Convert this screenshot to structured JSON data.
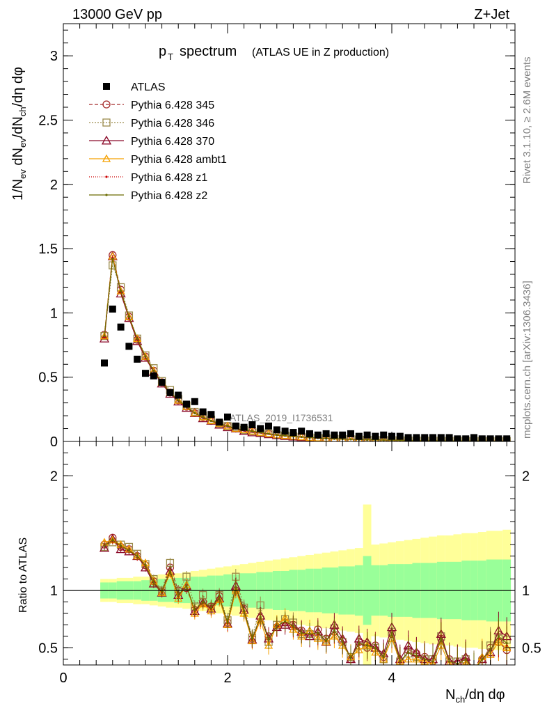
{
  "header": {
    "left": "13000 GeV pp",
    "right": "Z+Jet"
  },
  "side": {
    "rivet": "Rivet 3.1.10, ≥ 2.6M events",
    "mcplots": "mcplots.cern.ch [arXiv:1306.3436]"
  },
  "chart_data": [
    {
      "type": "scatter",
      "panel": "main",
      "title_main": "p",
      "title_sub": "T",
      "title_rest": "spectrum",
      "title_small": "(ATLAS UE in Z production)",
      "ylabel": "1/N_ev dN_ev/dN_ch/dη dφ",
      "watermark": "ATLAS_2019_I1736531",
      "xlim": [
        0,
        5.5
      ],
      "ylim": [
        0,
        3.25
      ],
      "yticks": [
        "0",
        "0.5",
        "1",
        "1.5",
        "2",
        "2.5",
        "3"
      ],
      "x": [
        0.5,
        0.6,
        0.7,
        0.8,
        0.9,
        1.0,
        1.1,
        1.2,
        1.3,
        1.4,
        1.5,
        1.6,
        1.7,
        1.8,
        1.9,
        2.0,
        2.1,
        2.2,
        2.3,
        2.4,
        2.5,
        2.6,
        2.7,
        2.8,
        2.9,
        3.0,
        3.1,
        3.2,
        3.3,
        3.4,
        3.5,
        3.6,
        3.7,
        3.8,
        3.9,
        4.0,
        4.1,
        4.2,
        4.3,
        4.4,
        4.5,
        4.6,
        4.7,
        4.8,
        4.9,
        5.0,
        5.1,
        5.2,
        5.3,
        5.4
      ],
      "series": [
        {
          "name": "ATLAS",
          "color": "#000000",
          "marker": "square",
          "values": [
            0.61,
            1.03,
            0.89,
            0.74,
            0.64,
            0.53,
            0.51,
            0.46,
            0.38,
            0.36,
            0.29,
            0.31,
            0.23,
            0.21,
            0.15,
            0.19,
            0.12,
            0.11,
            0.13,
            0.1,
            0.12,
            0.09,
            0.08,
            0.07,
            0.08,
            0.06,
            0.05,
            0.06,
            0.05,
            0.05,
            0.06,
            0.04,
            0.05,
            0.04,
            0.05,
            0.04,
            0.04,
            0.03,
            0.03,
            0.03,
            0.03,
            0.03,
            0.03,
            0.02,
            0.02,
            0.03,
            0.02,
            0.02,
            0.02,
            0.02
          ]
        },
        {
          "name": "Pythia 6.428 345",
          "color": "#a52a2a",
          "marker": "circle",
          "dash": "5,3",
          "values": [
            0.83,
            1.45,
            1.18,
            0.97,
            0.79,
            0.66,
            0.55,
            0.46,
            0.38,
            0.32,
            0.27,
            0.22,
            0.19,
            0.16,
            0.14,
            0.12,
            0.1,
            0.09,
            0.08,
            0.07,
            0.06,
            0.05,
            0.045,
            0.04,
            0.035,
            0.03,
            0.027,
            0.024,
            0.021,
            0.019,
            0.017,
            0.015,
            0.013,
            0.012,
            0.011,
            0.01,
            0.009,
            0.008,
            0.007,
            0.007,
            0.006,
            0.006,
            0.005,
            0.005,
            0.004,
            0.004,
            0.004,
            0.003,
            0.003,
            0.003
          ]
        },
        {
          "name": "Pythia 6.428 346",
          "color": "#9a8a4a",
          "marker": "square-open",
          "dash": "2,2",
          "values": [
            0.82,
            1.37,
            1.2,
            0.98,
            0.8,
            0.67,
            0.57,
            0.47,
            0.4,
            0.33,
            0.28,
            0.23,
            0.2,
            0.17,
            0.14,
            0.12,
            0.11,
            0.09,
            0.08,
            0.07,
            0.06,
            0.05,
            0.046,
            0.04,
            0.036,
            0.031,
            0.028,
            0.025,
            0.022,
            0.019,
            0.017,
            0.015,
            0.013,
            0.012,
            0.011,
            0.01,
            0.009,
            0.008,
            0.007,
            0.007,
            0.006,
            0.006,
            0.005,
            0.005,
            0.004,
            0.004,
            0.004,
            0.003,
            0.003,
            0.003
          ]
        },
        {
          "name": "Pythia 6.428 370",
          "color": "#8b0a2a",
          "marker": "triangle",
          "dash": "",
          "values": [
            0.8,
            1.44,
            1.15,
            0.96,
            0.78,
            0.65,
            0.54,
            0.45,
            0.37,
            0.31,
            0.26,
            0.22,
            0.18,
            0.16,
            0.13,
            0.11,
            0.1,
            0.08,
            0.07,
            0.065,
            0.055,
            0.048,
            0.042,
            0.037,
            0.033,
            0.029,
            0.026,
            0.023,
            0.02,
            0.018,
            0.016,
            0.014,
            0.013,
            0.012,
            0.01,
            0.009,
            0.008,
            0.008,
            0.007,
            0.006,
            0.006,
            0.005,
            0.005,
            0.004,
            0.004,
            0.004,
            0.003,
            0.003,
            0.003,
            0.003
          ]
        },
        {
          "name": "Pythia 6.428 ambt1",
          "color": "#f5a000",
          "marker": "triangle-small",
          "dash": "",
          "values": [
            0.82,
            1.44,
            1.17,
            0.97,
            0.8,
            0.66,
            0.55,
            0.46,
            0.38,
            0.32,
            0.27,
            0.22,
            0.19,
            0.16,
            0.14,
            0.12,
            0.1,
            0.09,
            0.08,
            0.07,
            0.06,
            0.05,
            0.045,
            0.04,
            0.035,
            0.03,
            0.027,
            0.024,
            0.021,
            0.019,
            0.017,
            0.015,
            0.013,
            0.012,
            0.011,
            0.01,
            0.009,
            0.008,
            0.007,
            0.007,
            0.006,
            0.006,
            0.005,
            0.005,
            0.004,
            0.004,
            0.004,
            0.003,
            0.003,
            0.003
          ]
        },
        {
          "name": "Pythia 6.428 z1",
          "color": "#cc0000",
          "marker": "dot",
          "dash": "1,2",
          "values": [
            0.81,
            1.43,
            1.16,
            0.96,
            0.79,
            0.65,
            0.55,
            0.46,
            0.38,
            0.32,
            0.27,
            0.22,
            0.19,
            0.16,
            0.14,
            0.12,
            0.1,
            0.09,
            0.08,
            0.07,
            0.06,
            0.05,
            0.045,
            0.04,
            0.035,
            0.03,
            0.027,
            0.024,
            0.021,
            0.019,
            0.017,
            0.015,
            0.013,
            0.012,
            0.011,
            0.01,
            0.009,
            0.008,
            0.007,
            0.007,
            0.006,
            0.006,
            0.005,
            0.005,
            0.004,
            0.004,
            0.004,
            0.003,
            0.003,
            0.003
          ]
        },
        {
          "name": "Pythia 6.428 z2",
          "color": "#6b6b00",
          "marker": "dot",
          "dash": "",
          "values": [
            0.82,
            1.42,
            1.17,
            0.97,
            0.8,
            0.66,
            0.55,
            0.46,
            0.38,
            0.32,
            0.27,
            0.22,
            0.19,
            0.16,
            0.14,
            0.12,
            0.1,
            0.09,
            0.08,
            0.07,
            0.06,
            0.05,
            0.045,
            0.04,
            0.035,
            0.03,
            0.027,
            0.024,
            0.021,
            0.019,
            0.017,
            0.015,
            0.013,
            0.012,
            0.011,
            0.01,
            0.009,
            0.008,
            0.007,
            0.007,
            0.006,
            0.006,
            0.005,
            0.005,
            0.004,
            0.004,
            0.004,
            0.003,
            0.003,
            0.003
          ]
        }
      ]
    },
    {
      "type": "scatter",
      "panel": "ratio",
      "ylabel": "Ratio to ATLAS",
      "xlabel": "N_ch/dη dφ",
      "xlim": [
        0,
        5.5
      ],
      "ylim": [
        0.35,
        2.3
      ],
      "xticks": [
        "0",
        "2",
        "4"
      ],
      "yticks": [
        "0.5",
        "1",
        "2"
      ],
      "reference_line": 1,
      "x": [
        0.5,
        0.6,
        0.7,
        0.8,
        0.9,
        1.0,
        1.1,
        1.2,
        1.3,
        1.4,
        1.5,
        1.6,
        1.7,
        1.8,
        1.9,
        2.0,
        2.1,
        2.2,
        2.3,
        2.4,
        2.5,
        2.6,
        2.7,
        2.8,
        2.9,
        3.0,
        3.1,
        3.2,
        3.3,
        3.4,
        3.5,
        3.6,
        3.7,
        3.8,
        3.9,
        4.0,
        4.1,
        4.2,
        4.3,
        4.4,
        4.5,
        4.6,
        4.7,
        4.8,
        4.9,
        5.0,
        5.1,
        5.2,
        5.3,
        5.4
      ],
      "band_green": [
        0.07,
        0.07,
        0.08,
        0.08,
        0.08,
        0.09,
        0.09,
        0.1,
        0.1,
        0.11,
        0.11,
        0.12,
        0.12,
        0.13,
        0.13,
        0.14,
        0.14,
        0.15,
        0.15,
        0.16,
        0.16,
        0.17,
        0.17,
        0.18,
        0.18,
        0.19,
        0.19,
        0.2,
        0.2,
        0.21,
        0.21,
        0.22,
        0.3,
        0.22,
        0.22,
        0.23,
        0.23,
        0.23,
        0.24,
        0.24,
        0.24,
        0.25,
        0.25,
        0.25,
        0.26,
        0.26,
        0.26,
        0.27,
        0.27,
        0.27
      ],
      "band_yellow": [
        0.1,
        0.1,
        0.11,
        0.11,
        0.12,
        0.12,
        0.13,
        0.14,
        0.15,
        0.15,
        0.16,
        0.17,
        0.18,
        0.19,
        0.2,
        0.21,
        0.22,
        0.23,
        0.24,
        0.25,
        0.26,
        0.27,
        0.28,
        0.29,
        0.3,
        0.31,
        0.32,
        0.33,
        0.34,
        0.35,
        0.36,
        0.37,
        0.75,
        0.4,
        0.41,
        0.42,
        0.43,
        0.44,
        0.45,
        0.46,
        0.47,
        0.48,
        0.48,
        0.49,
        0.5,
        0.5,
        0.51,
        0.52,
        0.52,
        0.53
      ],
      "series": [
        {
          "name": "Pythia 6.428 345",
          "values": [
            1.4,
            1.46,
            1.38,
            1.36,
            1.3,
            1.22,
            1.08,
            0.99,
            1.2,
            1.0,
            1.02,
            0.83,
            0.9,
            0.86,
            0.95,
            0.72,
            1.0,
            0.84,
            0.58,
            0.76,
            0.6,
            0.68,
            0.72,
            0.7,
            0.65,
            0.62,
            0.66,
            0.58,
            0.64,
            0.56,
            0.4,
            0.55,
            0.5,
            0.52,
            0.42,
            0.62,
            0.35,
            0.48,
            0.45,
            0.42,
            0.38,
            0.58,
            0.4,
            0.36,
            0.38,
            0.3,
            0.4,
            0.5,
            0.55,
            0.48
          ]
        },
        {
          "name": "Pythia 6.428 346",
          "values": [
            1.38,
            1.42,
            1.4,
            1.38,
            1.32,
            1.23,
            1.1,
            1.0,
            1.24,
            0.99,
            1.12,
            0.86,
            0.96,
            0.85,
            0.96,
            0.74,
            1.12,
            0.85,
            0.59,
            0.87,
            0.55,
            0.7,
            0.75,
            0.72,
            0.62,
            0.62,
            0.6,
            0.57,
            0.67,
            0.55,
            0.42,
            0.52,
            0.52,
            0.5,
            0.4,
            0.64,
            0.38,
            0.45,
            0.42,
            0.4,
            0.4,
            0.6,
            0.38,
            0.38,
            0.4,
            0.32,
            0.38,
            0.52,
            0.58,
            0.57
          ]
        },
        {
          "name": "Pythia 6.428 370",
          "values": [
            1.37,
            1.45,
            1.36,
            1.34,
            1.3,
            1.2,
            1.06,
            0.98,
            1.17,
            0.96,
            1.04,
            0.82,
            0.89,
            0.84,
            0.93,
            0.71,
            1.04,
            0.83,
            0.57,
            0.78,
            0.58,
            0.68,
            0.7,
            0.69,
            0.64,
            0.6,
            0.64,
            0.55,
            0.7,
            0.58,
            0.4,
            0.58,
            0.55,
            0.5,
            0.45,
            0.68,
            0.4,
            0.52,
            0.46,
            0.4,
            0.4,
            0.62,
            0.38,
            0.38,
            0.42,
            0.3,
            0.4,
            0.46,
            0.65,
            0.6
          ]
        },
        {
          "name": "Pythia 6.428 ambt1",
          "values": [
            1.42,
            1.44,
            1.4,
            1.36,
            1.3,
            1.24,
            1.08,
            0.98,
            1.15,
            0.93,
            1.05,
            0.8,
            0.88,
            0.82,
            0.92,
            0.7,
            1.0,
            0.8,
            0.56,
            0.74,
            0.52,
            0.7,
            0.76,
            0.66,
            0.6,
            0.65,
            0.58,
            0.55,
            0.6,
            0.52,
            0.42,
            0.48,
            0.52,
            0.46,
            0.4,
            0.58,
            0.38,
            0.4,
            0.4,
            0.38,
            0.36,
            0.52,
            0.36,
            0.34,
            0.36,
            0.3,
            0.42,
            0.44,
            0.55,
            0.5
          ]
        },
        {
          "name": "Pythia 6.428 z1",
          "values": [
            1.4,
            1.43,
            1.38,
            1.35,
            1.29,
            1.21,
            1.07,
            0.98,
            1.16,
            0.95,
            1.04,
            0.82,
            0.9,
            0.84,
            0.94,
            0.71,
            1.02,
            0.82,
            0.57,
            0.76,
            0.58,
            0.68,
            0.72,
            0.68,
            0.63,
            0.62,
            0.62,
            0.56,
            0.64,
            0.55,
            0.41,
            0.53,
            0.52,
            0.5,
            0.42,
            0.62,
            0.38,
            0.46,
            0.42,
            0.4,
            0.38,
            0.58,
            0.38,
            0.36,
            0.4,
            0.3,
            0.4,
            0.48,
            0.58,
            0.52
          ]
        },
        {
          "name": "Pythia 6.428 z2",
          "values": [
            1.39,
            1.44,
            1.39,
            1.35,
            1.3,
            1.22,
            1.07,
            0.99,
            1.17,
            0.96,
            1.04,
            0.83,
            0.9,
            0.85,
            0.94,
            0.72,
            1.03,
            0.82,
            0.58,
            0.77,
            0.57,
            0.69,
            0.73,
            0.69,
            0.63,
            0.62,
            0.63,
            0.56,
            0.65,
            0.55,
            0.41,
            0.54,
            0.52,
            0.5,
            0.42,
            0.63,
            0.38,
            0.46,
            0.43,
            0.4,
            0.38,
            0.58,
            0.38,
            0.36,
            0.4,
            0.3,
            0.4,
            0.48,
            0.6,
            0.54
          ]
        }
      ]
    }
  ]
}
